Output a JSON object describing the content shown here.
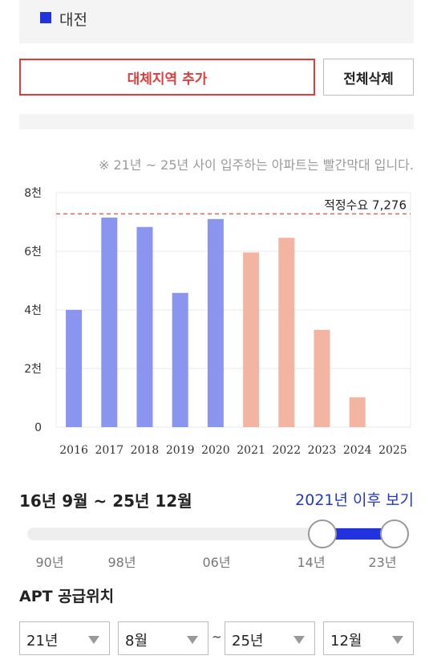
{
  "legend": {
    "label": "대전",
    "color": "#2233dd"
  },
  "buttons": {
    "add_region": "대체지역 추가",
    "clear_all": "전체삭제"
  },
  "note": "※ 21년 ~ 25년 사이 입주하는 아파트는 빨간막대 입니다.",
  "chart_data": {
    "type": "bar",
    "categories": [
      "2016",
      "2017",
      "2018",
      "2019",
      "2020",
      "2021",
      "2022",
      "2023",
      "2024",
      "2025"
    ],
    "values": [
      4000,
      7150,
      6830,
      4580,
      7100,
      5960,
      6460,
      3320,
      1020,
      0
    ],
    "bar_colors": [
      "#8a95f0",
      "#8a95f0",
      "#8a95f0",
      "#8a95f0",
      "#8a95f0",
      "#f4b4a2",
      "#f4b4a2",
      "#f4b4a2",
      "#f4b4a2",
      "#f4b4a2"
    ],
    "ylim": [
      0,
      8000
    ],
    "yticks": [
      0,
      2000,
      4000,
      6000,
      8000
    ],
    "ytick_labels": [
      "0",
      "2천",
      "4천",
      "6천",
      "8천"
    ],
    "reference_line": {
      "value": 7276,
      "label": "적정수요 7,276",
      "color": "#e06464"
    },
    "grid": true,
    "xlabel": "",
    "ylabel": ""
  },
  "period": {
    "label": "16년 9월 ~ 25년 12월",
    "link": "2021년 이후 보기"
  },
  "slider": {
    "ticks": [
      "90년",
      "98년",
      "06년",
      "14년",
      "23년"
    ],
    "range_color": "#2233dd"
  },
  "section": {
    "title": "APT 공급위치"
  },
  "selects": {
    "start_year": "21년",
    "start_month": "8월",
    "separator": "~",
    "end_year": "25년",
    "end_month": "12월"
  }
}
